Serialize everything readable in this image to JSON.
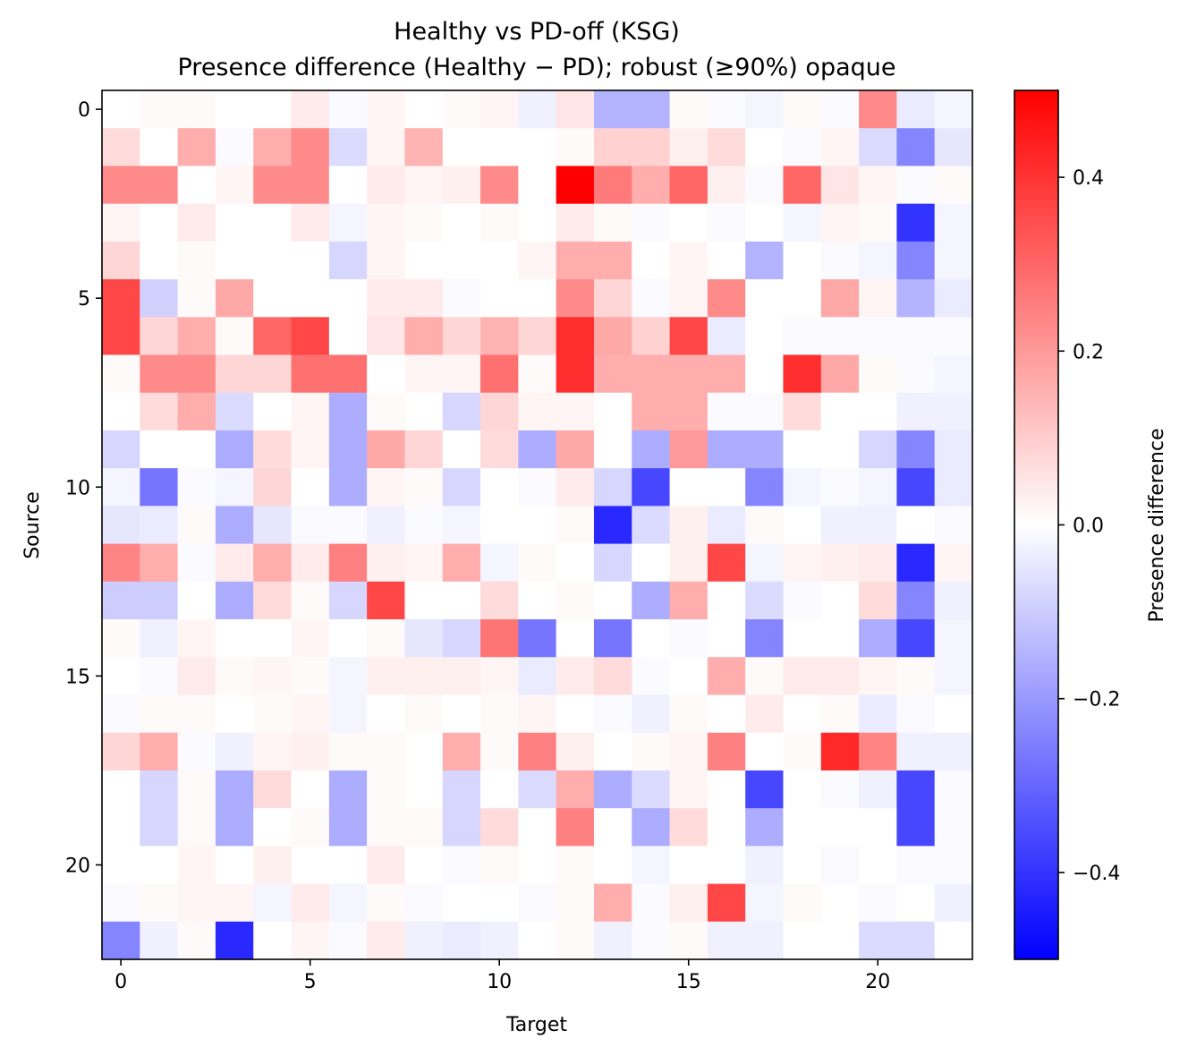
{
  "chart_data": {
    "type": "heatmap",
    "title": "Healthy vs PD-off (KSG)",
    "subtitle": "Presence difference (Healthy − PD); robust (≥90%) opaque",
    "xlabel": "Target",
    "ylabel": "Source",
    "x_ticks": [
      "0",
      "5",
      "10",
      "15",
      "20"
    ],
    "y_ticks": [
      "0",
      "5",
      "10",
      "15",
      "20"
    ],
    "colorbar_label": "Presence difference",
    "colorbar_ticks": [
      "0.4",
      "0.2",
      "0.0",
      "−0.2",
      "−0.4"
    ],
    "colorbar_tick_values": [
      0.4,
      0.2,
      0.0,
      -0.2,
      -0.4
    ],
    "vmin": -0.5,
    "vmax": 0.5,
    "colormap": "bwr",
    "grid": false,
    "rows": 23,
    "cols": 23,
    "values": [
      [
        0,
        0.01,
        0.01,
        0,
        0,
        0.04,
        -0.01,
        0.02,
        0,
        0.01,
        0.02,
        -0.03,
        0.05,
        -0.15,
        -0.15,
        0.01,
        -0.01,
        -0.02,
        0.01,
        -0.01,
        0.23,
        -0.04,
        -0.02
      ],
      [
        0.07,
        0,
        0.16,
        -0.01,
        0.16,
        0.23,
        -0.07,
        0.02,
        0.15,
        0,
        0,
        0,
        0.01,
        0.09,
        0.09,
        0.03,
        0.07,
        0,
        -0.01,
        0.02,
        -0.07,
        -0.24,
        -0.05
      ],
      [
        0.23,
        0.23,
        0,
        0.02,
        0.23,
        0.23,
        0,
        0.04,
        0.02,
        0.03,
        0.23,
        0,
        0.5,
        0.26,
        0.16,
        0.3,
        0.03,
        -0.01,
        0.3,
        0.05,
        0.02,
        -0.01,
        0.01
      ],
      [
        0.02,
        0,
        0.04,
        0,
        0,
        0.04,
        -0.02,
        0.02,
        0.01,
        0,
        0.01,
        0,
        0.04,
        0.01,
        -0.01,
        0,
        -0.01,
        0,
        -0.02,
        0.02,
        0.01,
        -0.4,
        -0.02
      ],
      [
        0.08,
        0,
        0.01,
        0,
        0,
        0,
        -0.08,
        0.02,
        0,
        0,
        0,
        0.02,
        0.16,
        0.16,
        0,
        0.02,
        0,
        -0.15,
        0,
        -0.01,
        -0.02,
        -0.24,
        -0.02
      ],
      [
        0.36,
        -0.09,
        0.01,
        0.17,
        0,
        0,
        0,
        0.04,
        0.04,
        -0.01,
        0,
        0,
        0.23,
        0.08,
        -0.01,
        0.02,
        0.23,
        0,
        0,
        0.17,
        0.02,
        -0.15,
        -0.04
      ],
      [
        0.36,
        0.08,
        0.16,
        0.01,
        0.3,
        0.36,
        0,
        0.05,
        0.16,
        0.08,
        0.15,
        0.08,
        0.41,
        0.17,
        0.09,
        0.36,
        -0.04,
        0,
        -0.01,
        -0.01,
        -0.01,
        -0.01,
        -0.01
      ],
      [
        0.01,
        0.23,
        0.23,
        0.08,
        0.08,
        0.28,
        0.28,
        0,
        0.02,
        0.02,
        0.28,
        0.01,
        0.41,
        0.16,
        0.16,
        0.16,
        0.16,
        0,
        0.41,
        0.17,
        0.01,
        -0.01,
        -0.02
      ],
      [
        0,
        0.07,
        0.16,
        -0.07,
        0,
        0.02,
        -0.16,
        0.01,
        0,
        -0.08,
        0.08,
        0.02,
        0.02,
        0,
        0.16,
        0.16,
        -0.01,
        -0.01,
        0.07,
        0,
        0,
        -0.03,
        -0.03
      ],
      [
        -0.08,
        0,
        0,
        -0.16,
        0.07,
        0.02,
        -0.16,
        0.17,
        0.08,
        0,
        0.07,
        -0.16,
        0.17,
        0,
        -0.16,
        0.2,
        -0.16,
        -0.16,
        0,
        0,
        -0.08,
        -0.24,
        -0.04
      ],
      [
        -0.02,
        -0.27,
        -0.01,
        -0.02,
        0.08,
        0,
        -0.16,
        0.02,
        0.01,
        -0.08,
        0,
        -0.01,
        0.04,
        -0.08,
        -0.36,
        0,
        0,
        -0.24,
        -0.02,
        -0.01,
        -0.02,
        -0.36,
        -0.04
      ],
      [
        -0.05,
        -0.04,
        0.01,
        -0.16,
        -0.05,
        -0.01,
        -0.01,
        -0.03,
        -0.01,
        -0.02,
        0,
        0,
        0.01,
        -0.42,
        -0.07,
        0.03,
        -0.04,
        0.01,
        0,
        -0.03,
        -0.03,
        0,
        -0.01
      ],
      [
        0.24,
        0.16,
        -0.01,
        0.04,
        0.16,
        0.04,
        0.25,
        0.03,
        0.02,
        0.16,
        -0.02,
        0.01,
        0,
        -0.08,
        0,
        0.03,
        0.36,
        -0.02,
        0.02,
        0.03,
        0.04,
        -0.42,
        0.02
      ],
      [
        -0.1,
        -0.1,
        0,
        -0.16,
        0.07,
        0.01,
        -0.08,
        0.36,
        0,
        0,
        0.07,
        0,
        0.01,
        0,
        -0.16,
        0.16,
        0,
        -0.07,
        -0.01,
        0,
        0.07,
        -0.24,
        -0.03
      ],
      [
        0.01,
        -0.03,
        0.02,
        0,
        0,
        0.02,
        0,
        0.01,
        -0.05,
        -0.08,
        0.27,
        -0.27,
        0,
        -0.27,
        0,
        -0.01,
        0,
        -0.24,
        0,
        0,
        -0.16,
        -0.36,
        -0.02
      ],
      [
        0,
        -0.01,
        0.04,
        0.01,
        0.02,
        0.01,
        -0.02,
        0.03,
        0.03,
        0.03,
        0.02,
        -0.04,
        0.04,
        0.07,
        -0.01,
        0,
        0.16,
        0.01,
        0.04,
        0.04,
        0.02,
        0.01,
        -0.02
      ],
      [
        -0.01,
        0.01,
        0.01,
        0,
        0.01,
        0.02,
        -0.02,
        0,
        0.01,
        0,
        0.01,
        0.02,
        0,
        -0.01,
        -0.03,
        0.01,
        0,
        0.04,
        0,
        0.01,
        -0.04,
        -0.01,
        0
      ],
      [
        0.08,
        0.16,
        -0.01,
        -0.03,
        0.02,
        0.03,
        0.01,
        0.01,
        0,
        0.16,
        0.01,
        0.25,
        0.03,
        0,
        0.01,
        0.02,
        0.25,
        0,
        0.01,
        0.42,
        0.24,
        -0.03,
        -0.03
      ],
      [
        0,
        -0.08,
        0.01,
        -0.16,
        0.07,
        0,
        -0.16,
        0.01,
        0,
        -0.08,
        0,
        -0.07,
        0.16,
        -0.16,
        -0.07,
        0.02,
        0,
        -0.36,
        0,
        -0.01,
        -0.03,
        -0.36,
        -0.01
      ],
      [
        0,
        -0.08,
        0.01,
        -0.16,
        0,
        0.01,
        -0.16,
        0.01,
        0.01,
        -0.08,
        0.07,
        0,
        0.25,
        0,
        -0.16,
        0.07,
        0,
        -0.16,
        0,
        0,
        0,
        -0.36,
        -0.01
      ],
      [
        0,
        0,
        0.02,
        0,
        0.03,
        0,
        0,
        0.04,
        0,
        -0.01,
        0.01,
        0,
        0.01,
        0,
        -0.02,
        0,
        0,
        -0.03,
        0,
        -0.01,
        0,
        -0.01,
        -0.01
      ],
      [
        -0.01,
        0.01,
        0.02,
        0.02,
        -0.02,
        0.04,
        -0.02,
        0.01,
        -0.01,
        0,
        0,
        -0.01,
        0.01,
        0.16,
        -0.01,
        0.03,
        0.36,
        -0.02,
        0.01,
        0,
        -0.01,
        0,
        -0.03
      ],
      [
        -0.24,
        -0.03,
        0.01,
        -0.42,
        0,
        0.02,
        -0.01,
        0.04,
        -0.03,
        -0.04,
        -0.03,
        0,
        0.01,
        -0.03,
        -0.01,
        0.01,
        -0.03,
        -0.03,
        0,
        0,
        -0.07,
        -0.07,
        0
      ]
    ]
  }
}
